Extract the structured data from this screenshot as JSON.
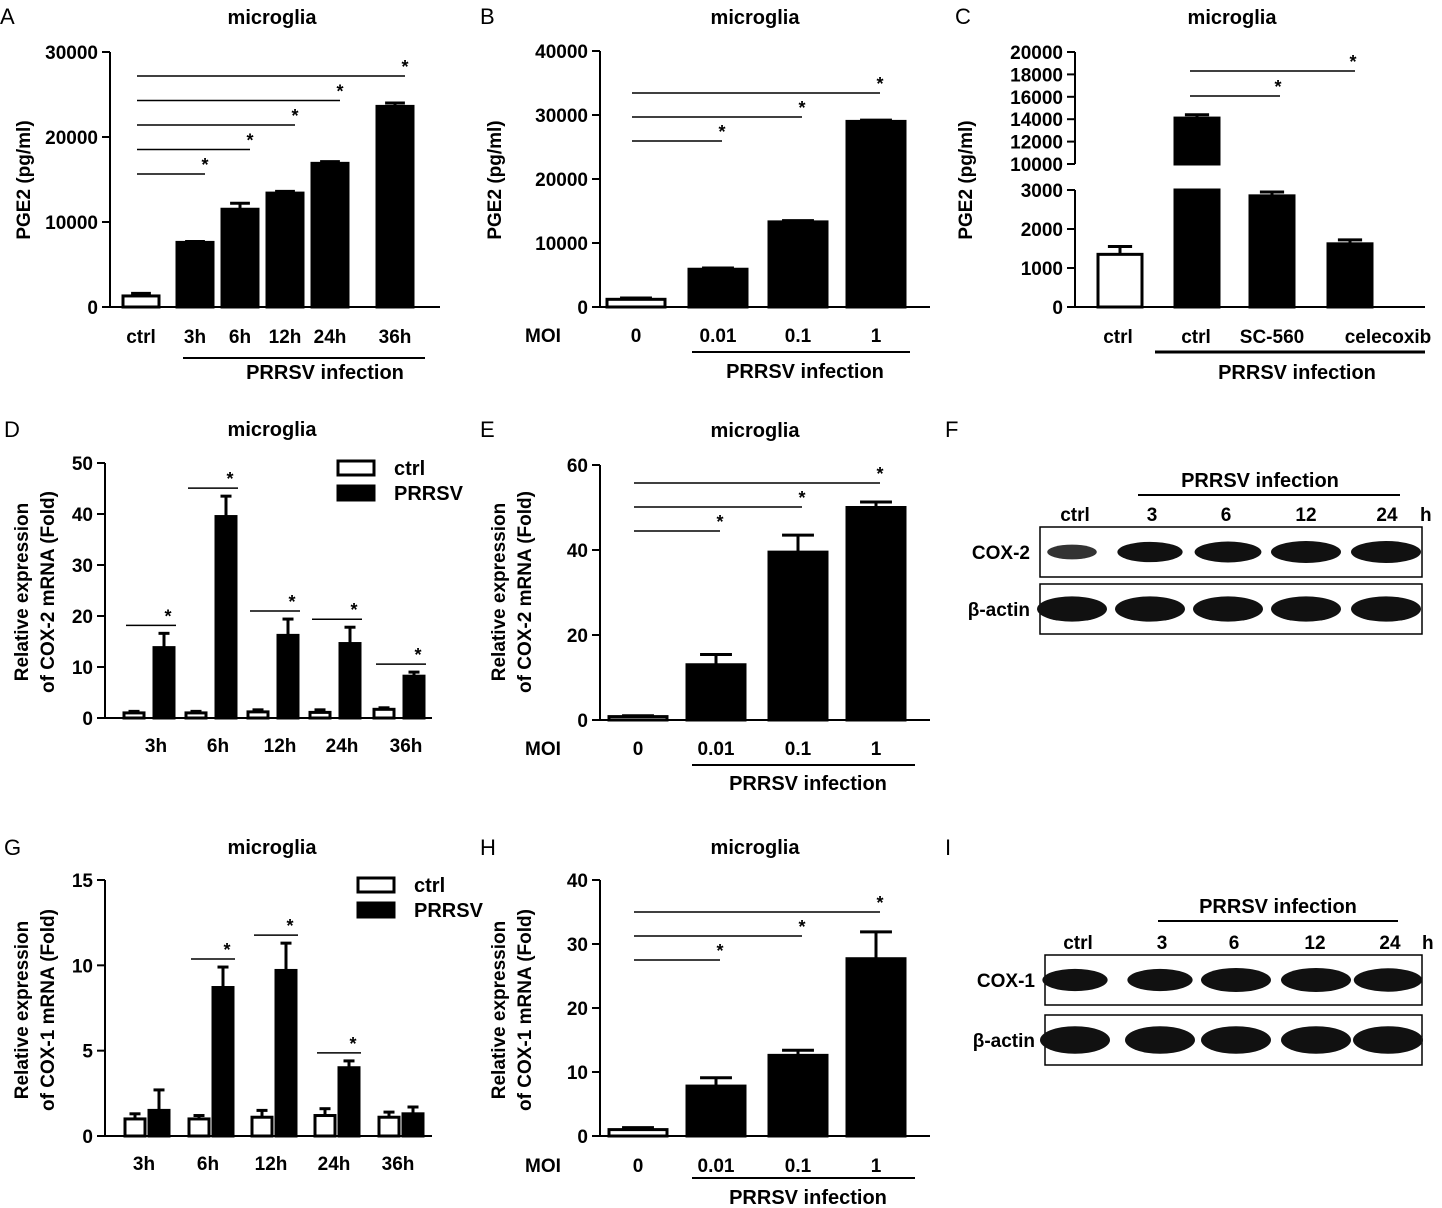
{
  "chart_data": [
    {
      "id": "A",
      "panel_letter": "A",
      "type": "bar",
      "title": "microglia",
      "ylabel": "PGE2 (pg/ml)",
      "ylim": [
        0,
        30000
      ],
      "yticks": [
        0,
        10000,
        20000,
        30000
      ],
      "categories": [
        "ctrl",
        "3h",
        "6h",
        "12h",
        "24h",
        "36h"
      ],
      "values": [
        1300,
        7600,
        11500,
        13400,
        16900,
        23600
      ],
      "errors": [
        300,
        100,
        700,
        200,
        200,
        400
      ],
      "fills": [
        "white",
        "black",
        "black",
        "black",
        "black",
        "black"
      ],
      "group_label": "PRRSV infection",
      "group_range": [
        1,
        5
      ],
      "significance": [
        {
          "from": 0,
          "to": 1,
          "label": "*"
        },
        {
          "from": 0,
          "to": 2,
          "label": "*"
        },
        {
          "from": 0,
          "to": 3,
          "label": "*"
        },
        {
          "from": 0,
          "to": 4,
          "label": "*"
        },
        {
          "from": 0,
          "to": 5,
          "label": "*"
        }
      ]
    },
    {
      "id": "B",
      "panel_letter": "B",
      "type": "bar",
      "title": "microglia",
      "ylabel": "PGE2 (pg/ml)",
      "ylim": [
        0,
        40000
      ],
      "yticks": [
        0,
        10000,
        20000,
        30000,
        40000
      ],
      "xprefix": "MOI",
      "categories": [
        "0",
        "0.01",
        "0.1",
        "1"
      ],
      "values": [
        1200,
        5900,
        13300,
        29000
      ],
      "errors": [
        200,
        200,
        200,
        200
      ],
      "fills": [
        "white",
        "black",
        "black",
        "black"
      ],
      "group_label": "PRRSV infection",
      "group_range": [
        1,
        3
      ],
      "significance": [
        {
          "from": 0,
          "to": 1,
          "label": "*"
        },
        {
          "from": 0,
          "to": 2,
          "label": "*"
        },
        {
          "from": 0,
          "to": 3,
          "label": "*"
        }
      ]
    },
    {
      "id": "C",
      "panel_letter": "C",
      "type": "bar",
      "title": "microglia",
      "ylabel": "PGE2 (pg/ml)",
      "axis_break": [
        3000,
        10000
      ],
      "lower_ticks": [
        0,
        1000,
        2000,
        3000
      ],
      "upper_ticks": [
        10000,
        12000,
        14000,
        16000,
        18000,
        20000
      ],
      "categories": [
        "ctrl",
        "ctrl",
        "SC-560",
        "celecoxib"
      ],
      "values": [
        1350,
        14100,
        2850,
        1620
      ],
      "errors": [
        200,
        300,
        100,
        100
      ],
      "fills": [
        "white",
        "black",
        "black",
        "black"
      ],
      "group_label": "PRRSV infection",
      "group_range": [
        1,
        3
      ],
      "significance": [
        {
          "from": 1,
          "to": 2,
          "label": "*"
        },
        {
          "from": 1,
          "to": 3,
          "label": "*"
        }
      ]
    },
    {
      "id": "D",
      "panel_letter": "D",
      "type": "grouped_bar",
      "title": "microglia",
      "ylabel": "Relative expression of COX-2 mRNA (Fold)",
      "ylim": [
        0,
        50
      ],
      "yticks": [
        0,
        10,
        20,
        30,
        40,
        50
      ],
      "categories": [
        "3h",
        "6h",
        "12h",
        "24h",
        "36h"
      ],
      "series": [
        {
          "name": "ctrl",
          "fill": "white",
          "values": [
            1.0,
            1.0,
            1.2,
            1.1,
            1.7
          ],
          "errors": [
            0.3,
            0.3,
            0.4,
            0.5,
            0.3
          ]
        },
        {
          "name": "PRRSV",
          "fill": "black",
          "values": [
            13.8,
            39.5,
            16.2,
            14.6,
            8.2
          ],
          "errors": [
            2.8,
            4.0,
            3.2,
            3.2,
            0.8
          ]
        }
      ],
      "legend": [
        "ctrl",
        "PRRSV"
      ],
      "significance_label": "*"
    },
    {
      "id": "E",
      "panel_letter": "E",
      "type": "bar",
      "title": "microglia",
      "ylabel": "Relative expression of COX-2 mRNA (Fold)",
      "ylim": [
        0,
        60
      ],
      "yticks": [
        0,
        20,
        40,
        60
      ],
      "xprefix": "MOI",
      "categories": [
        "0",
        "0.01",
        "0.1",
        "1"
      ],
      "values": [
        0.8,
        13.0,
        39.5,
        50.0
      ],
      "errors": [
        0.2,
        2.4,
        4.0,
        1.3
      ],
      "fills": [
        "white",
        "black",
        "black",
        "black"
      ],
      "group_label": "PRRSV infection",
      "group_range": [
        1,
        3
      ],
      "significance": [
        {
          "from": 0,
          "to": 1,
          "label": "*"
        },
        {
          "from": 0,
          "to": 2,
          "label": "*"
        },
        {
          "from": 0,
          "to": 3,
          "label": "*"
        }
      ]
    },
    {
      "id": "G",
      "panel_letter": "G",
      "type": "grouped_bar",
      "title": "microglia",
      "ylabel": "Relative expression of COX-1 mRNA (Fold)",
      "ylim": [
        0,
        15
      ],
      "yticks": [
        0,
        5,
        10,
        15
      ],
      "categories": [
        "3h",
        "6h",
        "12h",
        "24h",
        "36h"
      ],
      "series": [
        {
          "name": "ctrl",
          "fill": "white",
          "values": [
            1.0,
            1.0,
            1.1,
            1.2,
            1.1
          ],
          "errors": [
            0.3,
            0.2,
            0.4,
            0.4,
            0.3
          ]
        },
        {
          "name": "PRRSV",
          "fill": "black",
          "values": [
            1.5,
            8.7,
            9.7,
            4.0,
            1.3
          ],
          "errors": [
            1.2,
            1.2,
            1.6,
            0.4,
            0.4
          ]
        }
      ],
      "legend": [
        "ctrl",
        "PRRSV"
      ],
      "significance_label": "*",
      "significant": [
        1,
        2,
        3
      ]
    },
    {
      "id": "H",
      "panel_letter": "H",
      "type": "bar",
      "title": "microglia",
      "ylabel": "Relative expression of COX-1 mRNA (Fold)",
      "ylim": [
        0,
        40
      ],
      "yticks": [
        0,
        10,
        20,
        30,
        40
      ],
      "xprefix": "MOI",
      "categories": [
        "0",
        "0.01",
        "0.1",
        "1"
      ],
      "values": [
        1.0,
        7.8,
        12.6,
        27.7
      ],
      "errors": [
        0.3,
        1.3,
        0.8,
        4.2
      ],
      "fills": [
        "white",
        "black",
        "black",
        "black"
      ],
      "group_label": "PRRSV infection",
      "group_range": [
        1,
        3
      ],
      "significance": [
        {
          "from": 0,
          "to": 1,
          "label": "*"
        },
        {
          "from": 0,
          "to": 2,
          "label": "*"
        },
        {
          "from": 0,
          "to": 3,
          "label": "*"
        }
      ]
    }
  ],
  "blots": [
    {
      "id": "F",
      "panel_letter": "F",
      "header": "PRRSV infection",
      "lanes": [
        "ctrl",
        "3",
        "6",
        "12",
        "24"
      ],
      "unit": "h",
      "rows": [
        {
          "label": "COX-2",
          "intensity": [
            0.35,
            0.85,
            0.9,
            1.0,
            1.0
          ]
        },
        {
          "label": "β-actin",
          "intensity": [
            1,
            1,
            1,
            1,
            1
          ]
        }
      ]
    },
    {
      "id": "I",
      "panel_letter": "I",
      "header": "PRRSV infection",
      "lanes": [
        "ctrl",
        "3",
        "6",
        "12",
        "24"
      ],
      "unit": "h",
      "rows": [
        {
          "label": "COX-1",
          "intensity": [
            0.85,
            0.85,
            1.0,
            1.0,
            0.95
          ]
        },
        {
          "label": "β-actin",
          "intensity": [
            1,
            1,
            1,
            1,
            1
          ]
        }
      ]
    }
  ]
}
